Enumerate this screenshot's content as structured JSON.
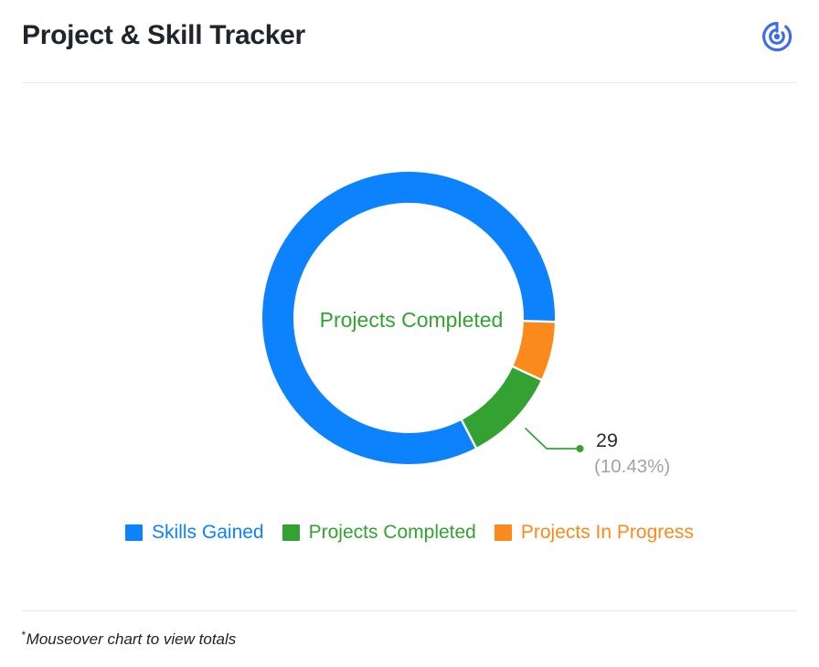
{
  "header": {
    "title": "Project & Skill Tracker"
  },
  "chart_data": {
    "type": "donut",
    "center_label": "Projects Completed",
    "center_label_color": "#34a233",
    "legend_position": "bottom",
    "segments": [
      {
        "label": "Skills Gained",
        "color": "#0d82fd",
        "value": null,
        "percent": 83.04,
        "start_deg": 152.56,
        "sweep_deg": 298.94
      },
      {
        "label": "Projects Completed",
        "color": "#34a233",
        "value": 29,
        "percent": 10.43,
        "start_deg": 115.01,
        "sweep_deg": 37.55
      },
      {
        "label": "Projects In Progress",
        "color": "#fb8a1d",
        "value": null,
        "percent": 6.53,
        "start_deg": 91.5,
        "sweep_deg": 23.51
      }
    ]
  },
  "tooltip": {
    "segment": "Projects Completed",
    "value": "29",
    "percent_text": "(10.43%)",
    "value_color": "#2d2d2d",
    "percent_color": "#a3a3a3",
    "line_color": "#34a233"
  },
  "footnote": {
    "asterisk": "*",
    "text": "Mouseover chart to view totals"
  },
  "colors": {
    "logo": "#3e6af0",
    "divider": "#e8e8e8",
    "background": "#ffffff"
  }
}
